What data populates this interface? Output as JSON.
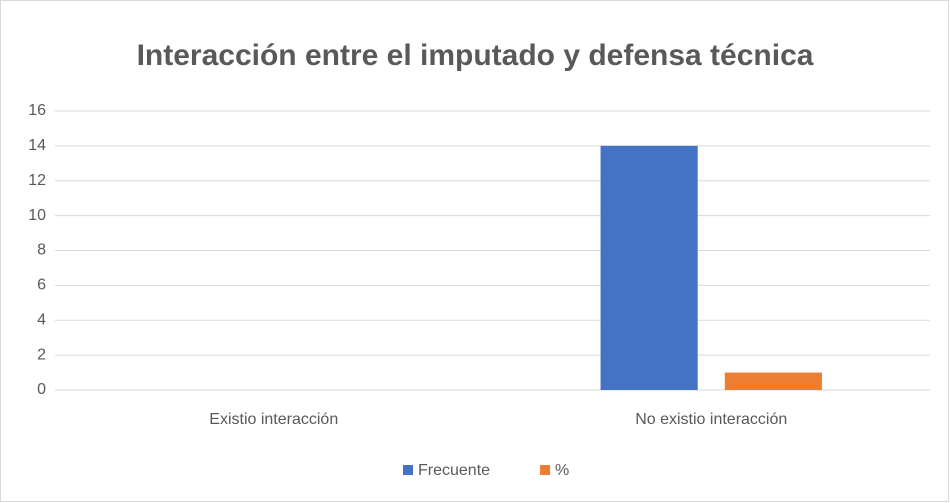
{
  "chart_data": {
    "type": "bar",
    "title": "Interacción entre el imputado y defensa técnica",
    "categories": [
      "Existio interacción",
      "No existio interacción"
    ],
    "series": [
      {
        "name": "Frecuente",
        "color": "#4472c4",
        "values": [
          0,
          14
        ]
      },
      {
        "name": "%",
        "color": "#ed7d31",
        "values": [
          0,
          1
        ]
      }
    ],
    "ylim": [
      0,
      16
    ],
    "yticks": [
      0,
      2,
      4,
      6,
      8,
      10,
      12,
      14,
      16
    ],
    "grid": true,
    "legend": "bottom"
  }
}
